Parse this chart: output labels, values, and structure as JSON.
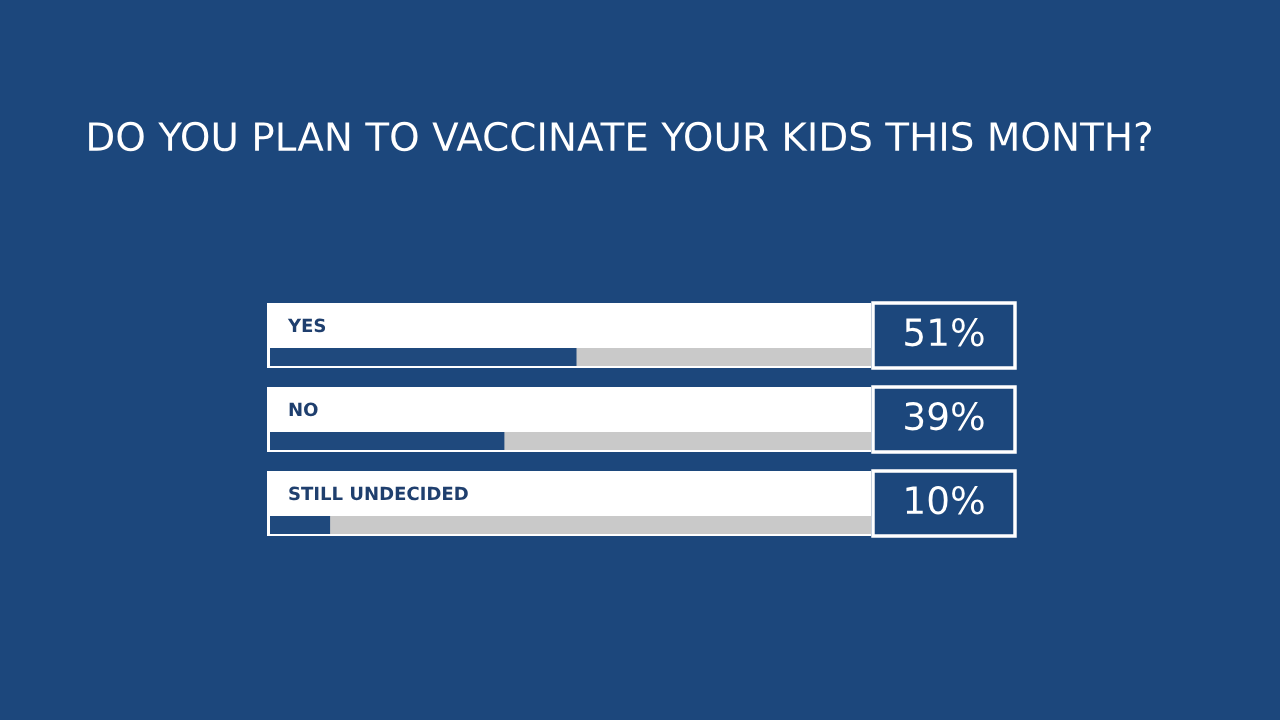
{
  "chart_data": {
    "type": "bar",
    "orientation": "horizontal",
    "title": "DO YOU PLAN TO VACCINATE YOUR KIDS THIS MONTH?",
    "categories": [
      "YES",
      "NO",
      "STILL UNDECIDED"
    ],
    "values": [
      51,
      39,
      10
    ],
    "value_labels": [
      "51%",
      "39%",
      "10%"
    ],
    "color": "#1f497d",
    "xlim": [
      0,
      100
    ],
    "tick_labels": false,
    "legend": false
  }
}
